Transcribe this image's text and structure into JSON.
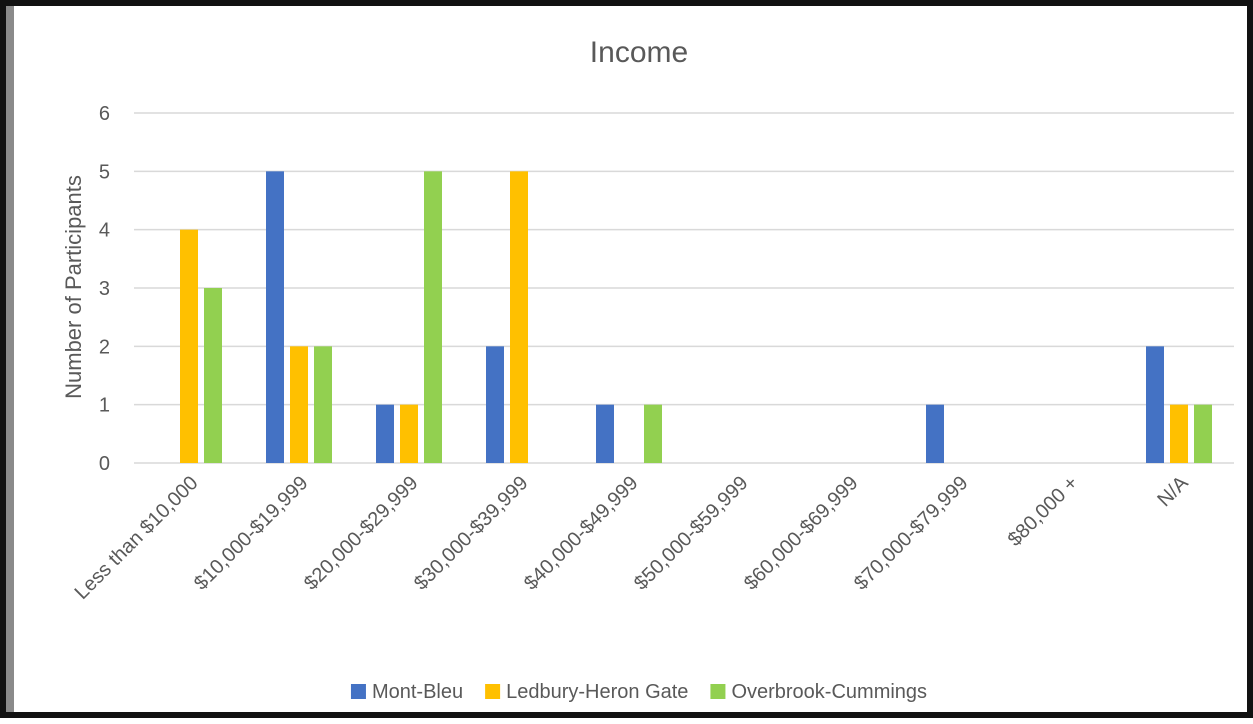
{
  "chart_data": {
    "type": "bar",
    "title": "Income",
    "xlabel": "",
    "ylabel": "Number of Participants",
    "ylim": [
      0,
      6
    ],
    "yticks": [
      0,
      1,
      2,
      3,
      4,
      5,
      6
    ],
    "grid": true,
    "legend_position": "bottom",
    "categories": [
      "Less than $10,000",
      "$10,000-$19,999",
      "$20,000-$29,999",
      "$30,000-$39,999",
      "$40,000-$49,999",
      "$50,000-$59,999",
      "$60,000-$69,999",
      "$70,000-$79,999",
      "$80,000 +",
      "N/A"
    ],
    "series": [
      {
        "name": "Mont-Bleu",
        "color": "#4472c4",
        "values": [
          0,
          5,
          1,
          2,
          1,
          0,
          0,
          1,
          0,
          2
        ]
      },
      {
        "name": "Ledbury-Heron Gate",
        "color": "#ffc000",
        "values": [
          4,
          2,
          1,
          5,
          0,
          0,
          0,
          0,
          0,
          1
        ]
      },
      {
        "name": "Overbrook-Cummings",
        "color": "#92d050",
        "values": [
          3,
          2,
          5,
          0,
          1,
          0,
          0,
          0,
          0,
          1
        ]
      }
    ]
  }
}
